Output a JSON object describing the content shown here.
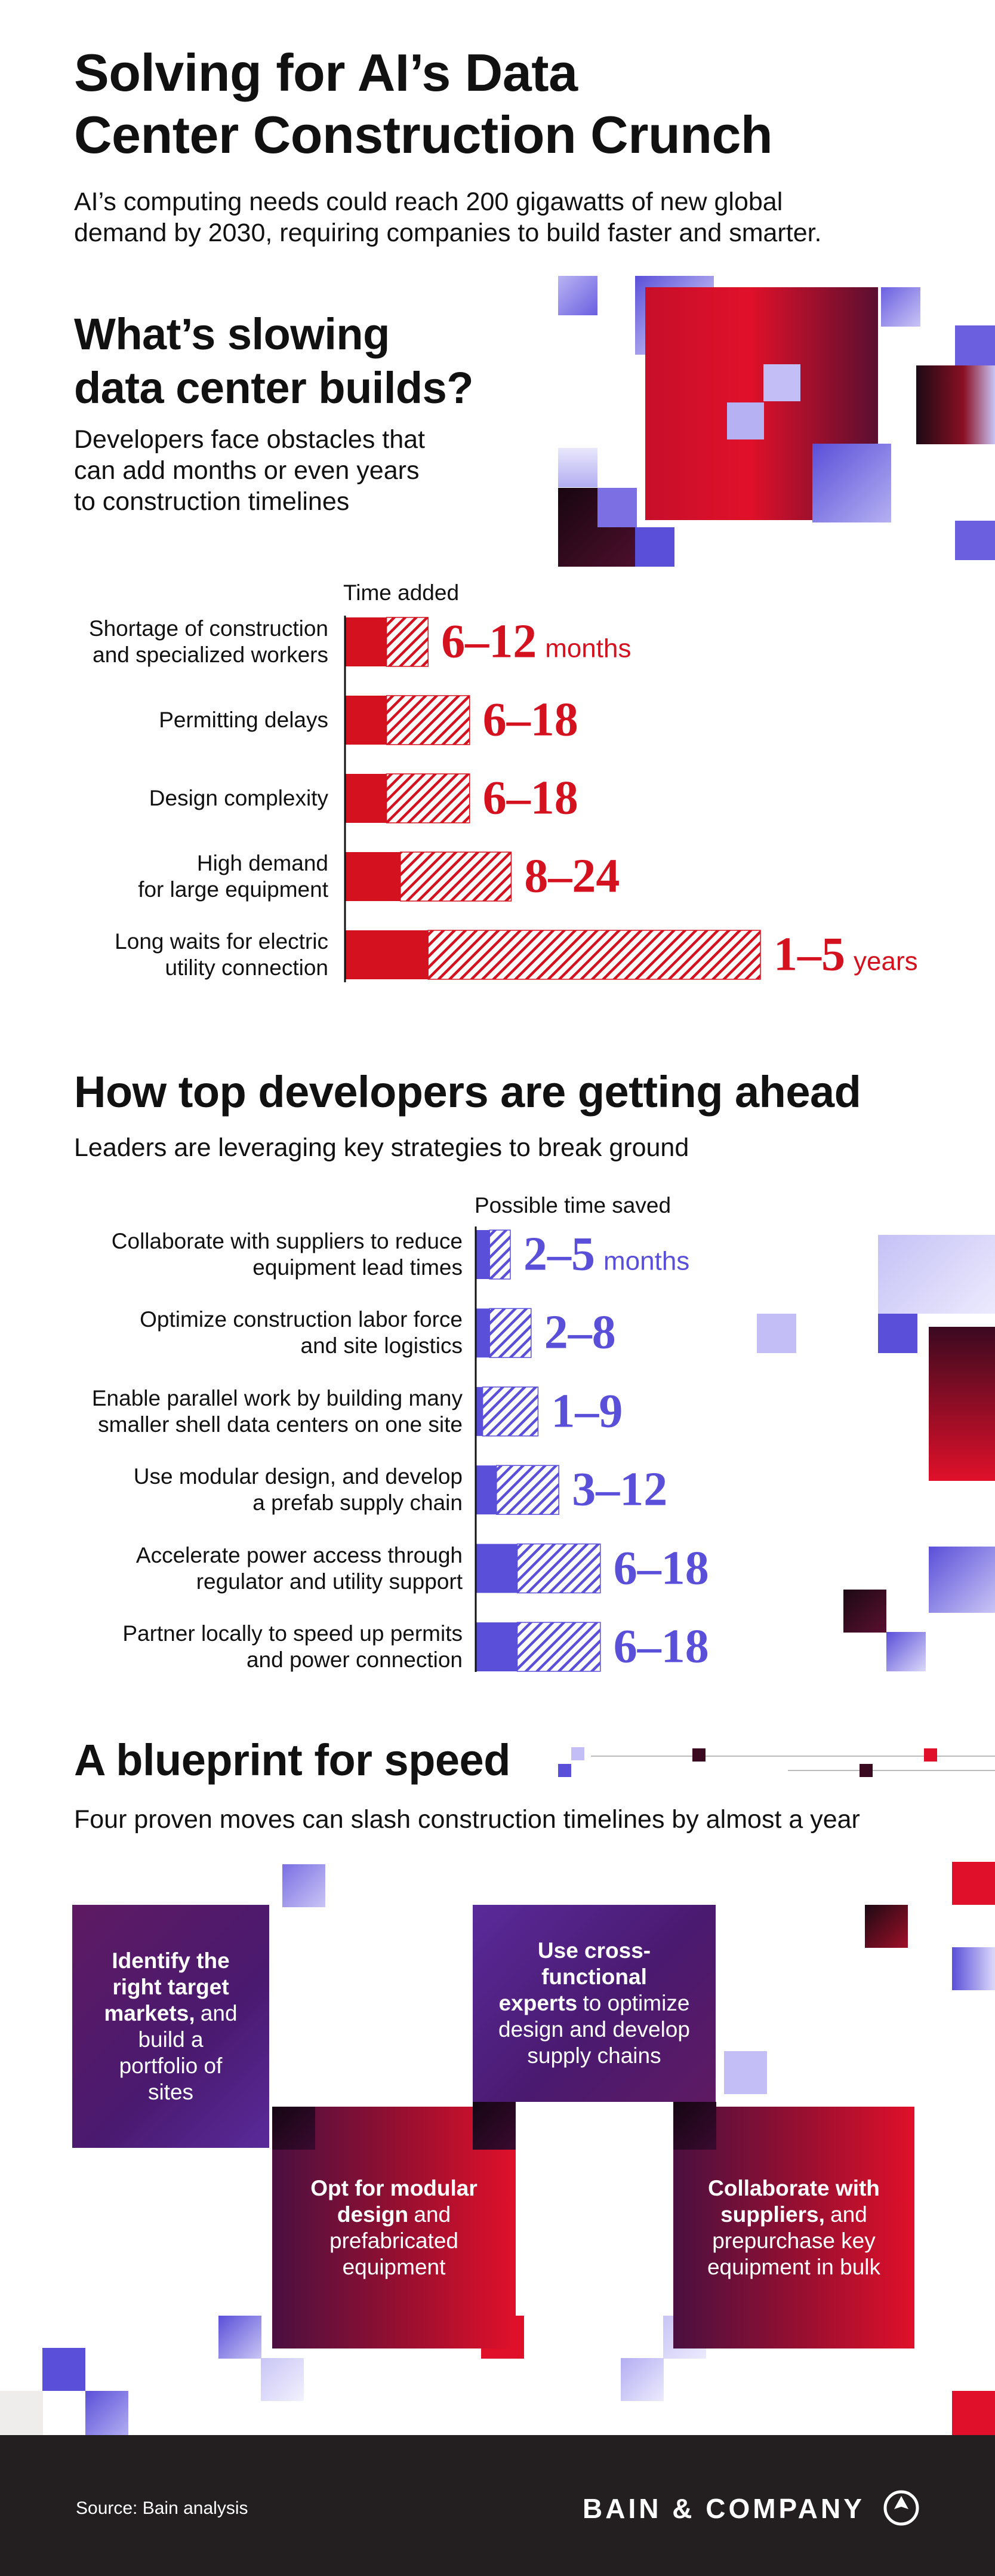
{
  "header": {
    "title": "Solving for AI’s Data\nCenter Construction Crunch",
    "subtitle": "AI’s computing needs could reach 200 gigawatts of new global\ndemand by 2030, requiring companies to build faster and smarter."
  },
  "chart_data": [
    {
      "type": "range-bar",
      "title": "What’s slowing\ndata center builds?",
      "subtitle": "Developers face obstacles that\ncan add months or even years\nto construction timelines",
      "axis_label": "Time added",
      "categories": [
        "Shortage of construction\nand specialized workers",
        "Permitting delays",
        "Design complexity",
        "High demand\nfor large equipment",
        "Long waits for electric\nutility connection"
      ],
      "series": [
        {
          "color": "#d4111e",
          "pattern": "solid",
          "values": [
            6,
            6,
            6,
            8,
            12
          ]
        },
        {
          "color": "#d4111e",
          "pattern": "hatched",
          "values": [
            12,
            18,
            18,
            24,
            60
          ]
        }
      ],
      "value_labels": [
        "6–12",
        "6–18",
        "6–18",
        "8–24",
        "1–5"
      ],
      "unit_labels": [
        "months",
        null,
        null,
        null,
        "years"
      ]
    },
    {
      "type": "range-bar",
      "title": "How top developers are getting ahead",
      "subtitle": "Leaders are leveraging key strategies to break ground",
      "axis_label": "Possible time saved",
      "categories": [
        "Collaborate with suppliers to reduce\nequipment lead times",
        "Optimize construction labor force\nand site logistics",
        "Enable parallel work by building many\nsmaller shell data centers on one site",
        "Use modular design, and develop\na prefab supply chain",
        "Accelerate power access through\nregulator and utility support",
        "Partner locally to speed up permits\nand power connection"
      ],
      "series": [
        {
          "color": "#5a4fd8",
          "pattern": "solid",
          "values": [
            2,
            2,
            1,
            3,
            6,
            6
          ]
        },
        {
          "color": "#5a4fd8",
          "pattern": "hatched",
          "values": [
            5,
            8,
            9,
            12,
            18,
            18
          ]
        }
      ],
      "value_labels": [
        "2–5",
        "2–8",
        "1–9",
        "3–12",
        "6–18",
        "6–18"
      ],
      "unit_labels": [
        "months",
        null,
        null,
        null,
        null,
        null
      ]
    }
  ],
  "blueprint": {
    "title": "A blueprint for speed",
    "subtitle": "Four proven moves can slash construction timelines by almost a year",
    "moves": [
      {
        "bold": "Identify the right target markets,",
        "text": "and build a portfolio of sites"
      },
      {
        "bold": "Use cross-functional experts",
        "text": "to optimize design and develop supply chains"
      },
      {
        "bold": "Opt for modular design",
        "text": "and prefabricated equipment"
      },
      {
        "bold": "Collaborate with suppliers,",
        "text": "and prepurchase key equipment in bulk"
      }
    ]
  },
  "footer": {
    "source": "Source: Bain analysis",
    "brand": "BAIN & COMPANY"
  }
}
